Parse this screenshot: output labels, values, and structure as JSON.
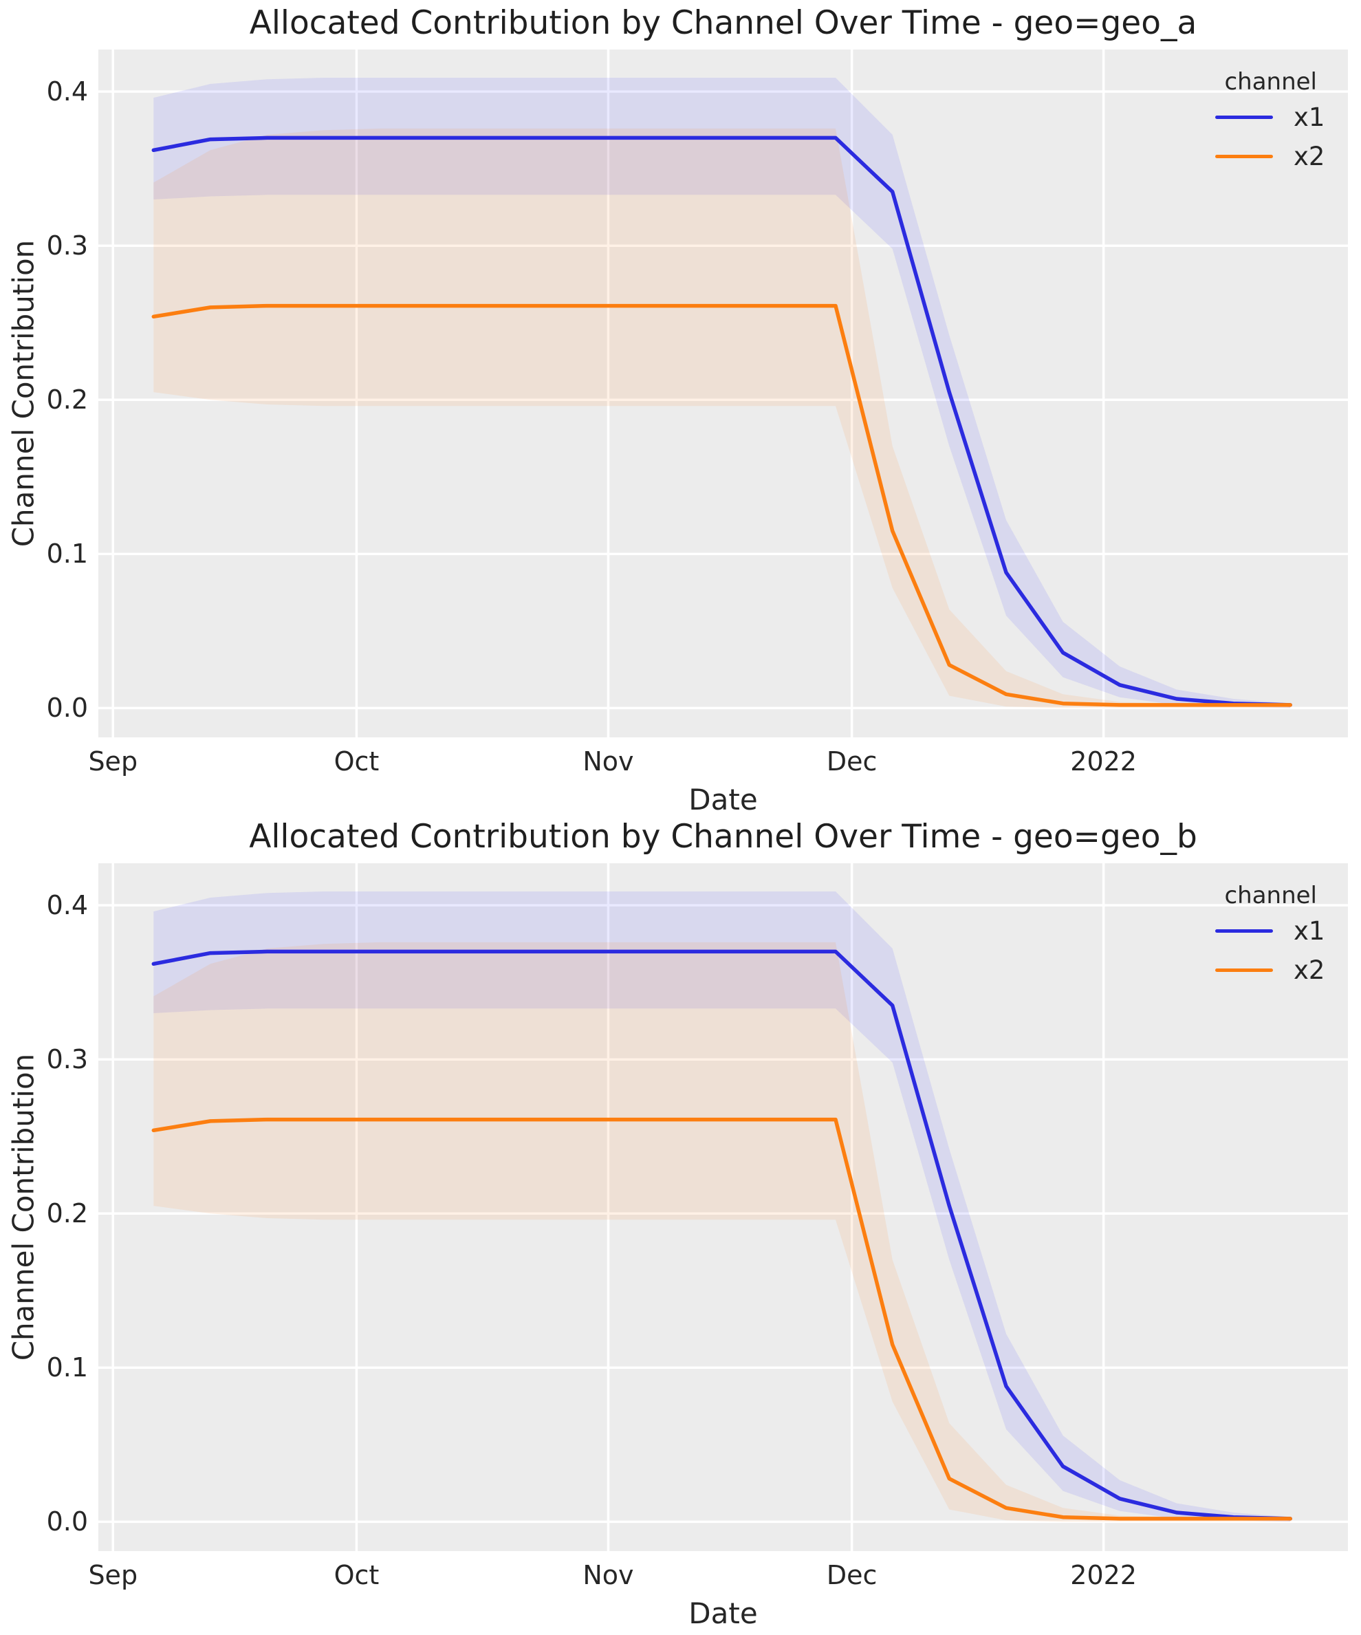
{
  "style": {
    "figure_bg": "#ffffff",
    "axes_bg": "#ececec",
    "grid_color": "#ffffff",
    "text_color": "#262626",
    "title_color": "#1f1f1f"
  },
  "axis_labels": {
    "x": "Date",
    "y": "Channel Contribution"
  },
  "legend": {
    "title": "channel",
    "entries": [
      {
        "label": "x1",
        "color": "#2b2bdf"
      },
      {
        "label": "x2",
        "color": "#fc7e10"
      }
    ]
  },
  "chart_data": [
    {
      "type": "line",
      "title": "Allocated Contribution by Channel Over Time - geo=geo_a",
      "xlabel": "Date",
      "ylabel": "Channel Contribution",
      "legend_position": "upper right",
      "grid": true,
      "x_tick_labels": [
        "Sep",
        "Oct",
        "Nov",
        "Dec",
        "2022"
      ],
      "x_tick_days": [
        0,
        30,
        61,
        91,
        122
      ],
      "y_ticks": [
        {
          "value": 0.0,
          "label": "0.0"
        },
        {
          "value": 0.1,
          "label": "0.1"
        },
        {
          "value": 0.2,
          "label": "0.2"
        },
        {
          "value": 0.3,
          "label": "0.3"
        },
        {
          "value": 0.4,
          "label": "0.4"
        }
      ],
      "xlim": [
        -1.8,
        152.1
      ],
      "ylim": [
        -0.019,
        0.4273
      ],
      "x_dates": [
        "2021-09-06",
        "2021-09-13",
        "2021-09-20",
        "2021-09-27",
        "2021-10-04",
        "2021-10-11",
        "2021-10-18",
        "2021-10-25",
        "2021-11-01",
        "2021-11-08",
        "2021-11-15",
        "2021-11-22",
        "2021-11-29",
        "2021-12-06",
        "2021-12-13",
        "2021-12-20",
        "2021-12-27",
        "2022-01-03",
        "2022-01-10",
        "2022-01-17",
        "2022-01-24"
      ],
      "x_days": [
        5,
        12,
        19,
        26,
        33,
        40,
        47,
        54,
        61,
        68,
        75,
        82,
        89,
        96,
        103,
        110,
        117,
        124,
        131,
        138,
        145
      ],
      "series": [
        {
          "name": "x1",
          "color": "#2b2bdf",
          "band_color": "#3939ff",
          "band_opacity": 0.11,
          "mean": [
            0.362,
            0.369,
            0.37,
            0.37,
            0.37,
            0.37,
            0.37,
            0.37,
            0.37,
            0.37,
            0.37,
            0.37,
            0.37,
            0.335,
            0.205,
            0.088,
            0.036,
            0.015,
            0.006,
            0.003,
            0.002
          ],
          "ci_lo": [
            0.33,
            0.332,
            0.333,
            0.333,
            0.333,
            0.333,
            0.333,
            0.333,
            0.333,
            0.333,
            0.333,
            0.333,
            0.333,
            0.298,
            0.17,
            0.06,
            0.02,
            0.007,
            0.002,
            0.001,
            0.0
          ],
          "ci_hi": [
            0.396,
            0.405,
            0.408,
            0.409,
            0.409,
            0.409,
            0.409,
            0.409,
            0.409,
            0.409,
            0.409,
            0.409,
            0.409,
            0.372,
            0.242,
            0.122,
            0.056,
            0.027,
            0.012,
            0.006,
            0.003
          ]
        },
        {
          "name": "x2",
          "color": "#fc7e10",
          "band_color": "#fc7f11",
          "band_opacity": 0.105,
          "mean": [
            0.254,
            0.26,
            0.261,
            0.261,
            0.261,
            0.261,
            0.261,
            0.261,
            0.261,
            0.261,
            0.261,
            0.261,
            0.261,
            0.115,
            0.028,
            0.009,
            0.003,
            0.002,
            0.002,
            0.002,
            0.002
          ],
          "ci_lo": [
            0.205,
            0.2,
            0.197,
            0.196,
            0.196,
            0.196,
            0.196,
            0.196,
            0.196,
            0.196,
            0.196,
            0.196,
            0.196,
            0.078,
            0.008,
            0.001,
            0.0,
            0.0,
            0.0,
            0.0,
            0.0
          ],
          "ci_hi": [
            0.341,
            0.362,
            0.372,
            0.375,
            0.376,
            0.376,
            0.376,
            0.376,
            0.376,
            0.376,
            0.376,
            0.376,
            0.376,
            0.17,
            0.064,
            0.024,
            0.009,
            0.004,
            0.003,
            0.003,
            0.003
          ]
        }
      ]
    },
    {
      "type": "line",
      "title": "Allocated Contribution by Channel Over Time - geo=geo_b",
      "xlabel": "Date",
      "ylabel": "Channel Contribution",
      "legend_position": "upper right",
      "grid": true,
      "x_tick_labels": [
        "Sep",
        "Oct",
        "Nov",
        "Dec",
        "2022"
      ],
      "x_tick_days": [
        0,
        30,
        61,
        91,
        122
      ],
      "y_ticks": [
        {
          "value": 0.0,
          "label": "0.0"
        },
        {
          "value": 0.1,
          "label": "0.1"
        },
        {
          "value": 0.2,
          "label": "0.2"
        },
        {
          "value": 0.3,
          "label": "0.3"
        },
        {
          "value": 0.4,
          "label": "0.4"
        }
      ],
      "xlim": [
        -1.8,
        152.1
      ],
      "ylim": [
        -0.019,
        0.4273
      ],
      "x_dates": [
        "2021-09-06",
        "2021-09-13",
        "2021-09-20",
        "2021-09-27",
        "2021-10-04",
        "2021-10-11",
        "2021-10-18",
        "2021-10-25",
        "2021-11-01",
        "2021-11-08",
        "2021-11-15",
        "2021-11-22",
        "2021-11-29",
        "2021-12-06",
        "2021-12-13",
        "2021-12-20",
        "2021-12-27",
        "2022-01-03",
        "2022-01-10",
        "2022-01-17",
        "2022-01-24"
      ],
      "x_days": [
        5,
        12,
        19,
        26,
        33,
        40,
        47,
        54,
        61,
        68,
        75,
        82,
        89,
        96,
        103,
        110,
        117,
        124,
        131,
        138,
        145
      ],
      "series": [
        {
          "name": "x1",
          "color": "#2b2bdf",
          "band_color": "#3939ff",
          "band_opacity": 0.11,
          "mean": [
            0.362,
            0.369,
            0.37,
            0.37,
            0.37,
            0.37,
            0.37,
            0.37,
            0.37,
            0.37,
            0.37,
            0.37,
            0.37,
            0.335,
            0.205,
            0.088,
            0.036,
            0.015,
            0.006,
            0.003,
            0.002
          ],
          "ci_lo": [
            0.33,
            0.332,
            0.333,
            0.333,
            0.333,
            0.333,
            0.333,
            0.333,
            0.333,
            0.333,
            0.333,
            0.333,
            0.333,
            0.298,
            0.17,
            0.06,
            0.02,
            0.007,
            0.002,
            0.001,
            0.0
          ],
          "ci_hi": [
            0.396,
            0.405,
            0.408,
            0.409,
            0.409,
            0.409,
            0.409,
            0.409,
            0.409,
            0.409,
            0.409,
            0.409,
            0.409,
            0.372,
            0.242,
            0.122,
            0.056,
            0.027,
            0.012,
            0.006,
            0.003
          ]
        },
        {
          "name": "x2",
          "color": "#fc7e10",
          "band_color": "#fc7f11",
          "band_opacity": 0.105,
          "mean": [
            0.254,
            0.26,
            0.261,
            0.261,
            0.261,
            0.261,
            0.261,
            0.261,
            0.261,
            0.261,
            0.261,
            0.261,
            0.261,
            0.115,
            0.028,
            0.009,
            0.003,
            0.002,
            0.002,
            0.002,
            0.002
          ],
          "ci_lo": [
            0.205,
            0.2,
            0.197,
            0.196,
            0.196,
            0.196,
            0.196,
            0.196,
            0.196,
            0.196,
            0.196,
            0.196,
            0.196,
            0.078,
            0.008,
            0.001,
            0.0,
            0.0,
            0.0,
            0.0,
            0.0
          ],
          "ci_hi": [
            0.341,
            0.362,
            0.372,
            0.375,
            0.376,
            0.376,
            0.376,
            0.376,
            0.376,
            0.376,
            0.376,
            0.376,
            0.376,
            0.17,
            0.064,
            0.024,
            0.009,
            0.004,
            0.003,
            0.003,
            0.003
          ]
        }
      ]
    }
  ]
}
